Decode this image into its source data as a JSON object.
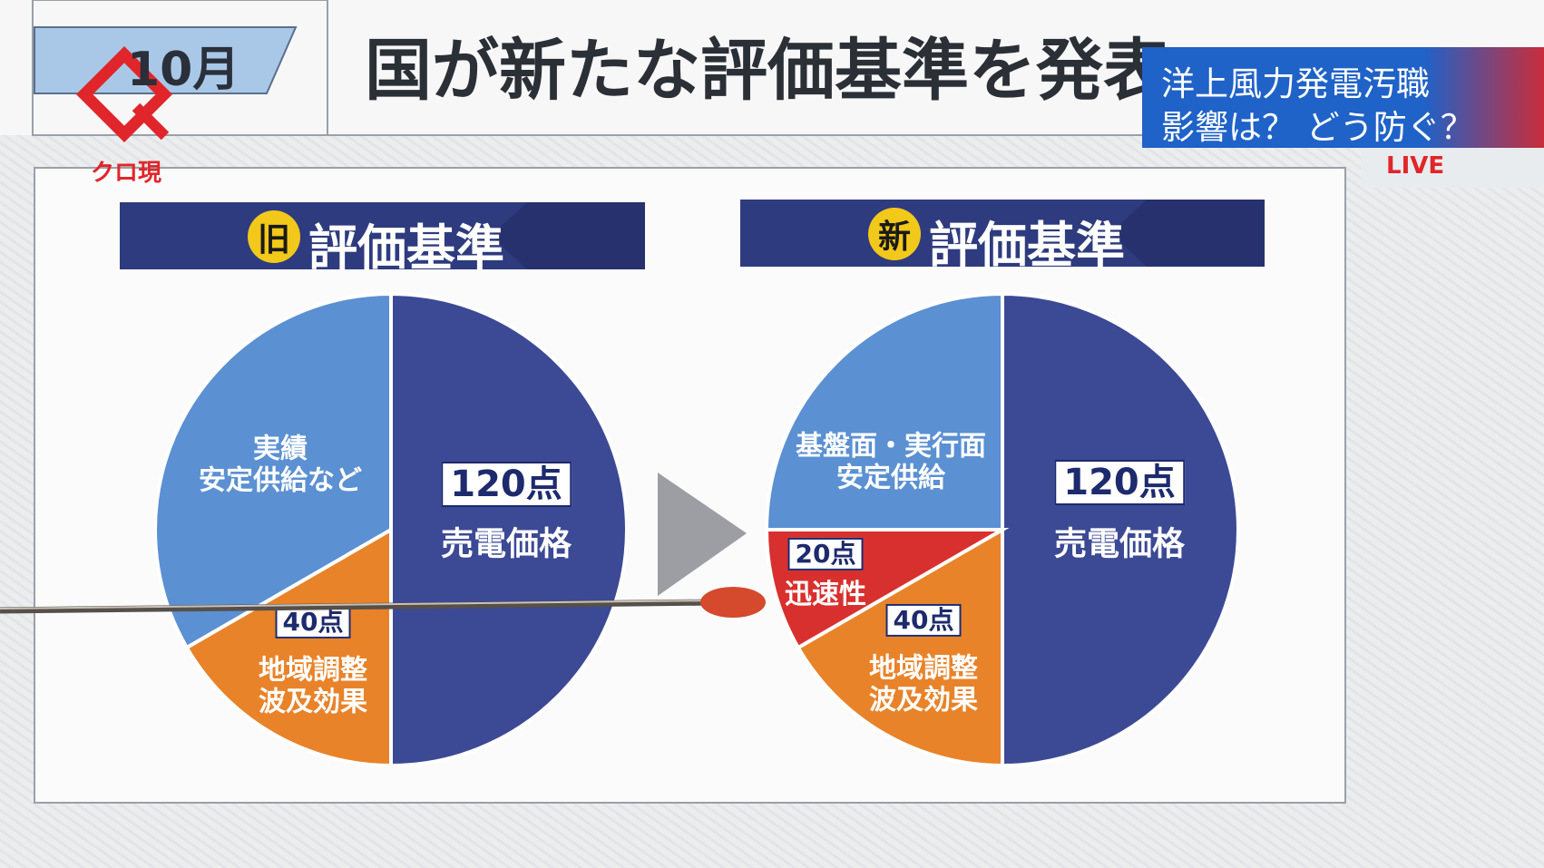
{
  "header": {
    "month": "10月",
    "title": "国が新たな評価基準を発表"
  },
  "logo": {
    "text": "クロ現"
  },
  "overlay": {
    "lines": [
      "洋上風力発電汚職",
      "影響は？ どう防ぐ？"
    ],
    "live": "LIVE"
  },
  "chart_data": [
    {
      "type": "pie",
      "badge": "旧",
      "title": "評価基準",
      "categories": [
        "売電価格",
        "地域調整\n波及効果",
        "実績\n安定供給など"
      ],
      "values": [
        120,
        40,
        80
      ],
      "value_labels": [
        "120点",
        "40点",
        null
      ],
      "colors": [
        "#3c4995",
        "#e8832a",
        "#5b90d2"
      ]
    },
    {
      "type": "pie",
      "badge": "新",
      "title": "評価基準",
      "categories": [
        "売電価格",
        "地域調整\n波及効果",
        "迅速性",
        "基盤面・実行面\n安定供給"
      ],
      "values": [
        120,
        40,
        20,
        60
      ],
      "value_labels": [
        "120点",
        "40点",
        "20点",
        null
      ],
      "colors": [
        "#3c4995",
        "#e8832a",
        "#d8302e",
        "#5b90d2"
      ]
    }
  ]
}
